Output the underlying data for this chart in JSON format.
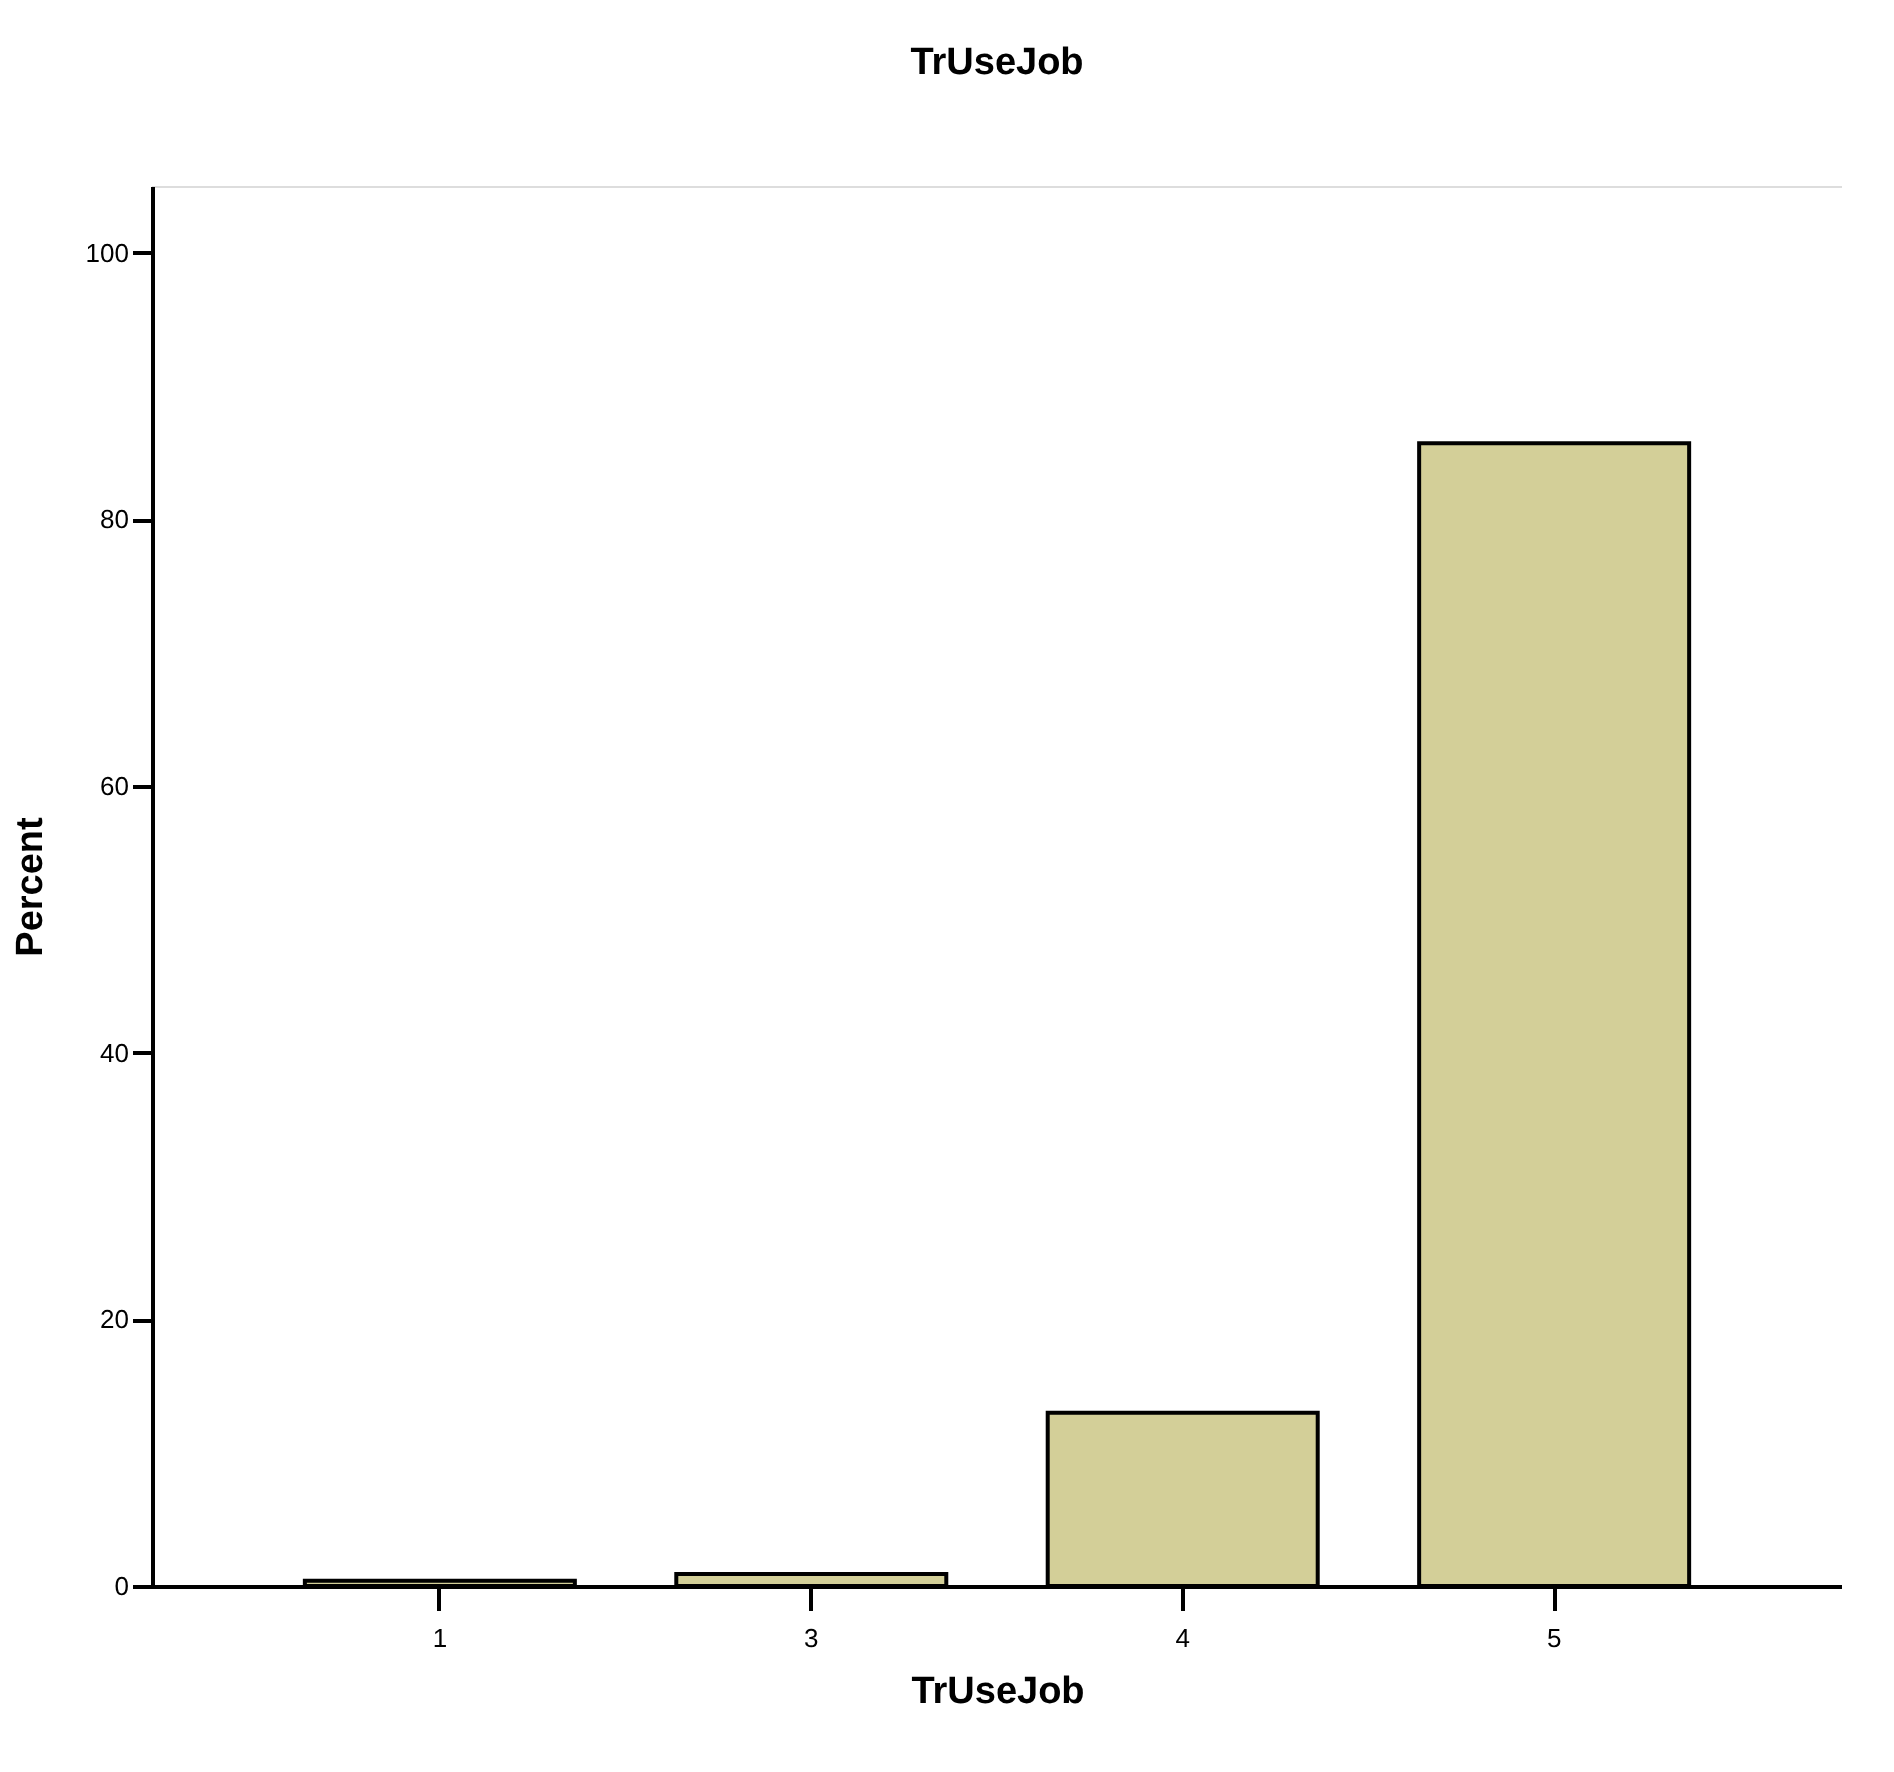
{
  "chart_data": {
    "type": "bar",
    "title": "TrUseJob",
    "xlabel": "TrUseJob",
    "ylabel": "Percent",
    "categories": [
      "1",
      "3",
      "4",
      "5"
    ],
    "values": [
      0.4,
      0.9,
      13,
      85.7
    ],
    "color": "#d3cf98",
    "ylim": [
      0,
      105
    ],
    "yticks": [
      0,
      20,
      40,
      60,
      80,
      100
    ],
    "grid": false
  }
}
